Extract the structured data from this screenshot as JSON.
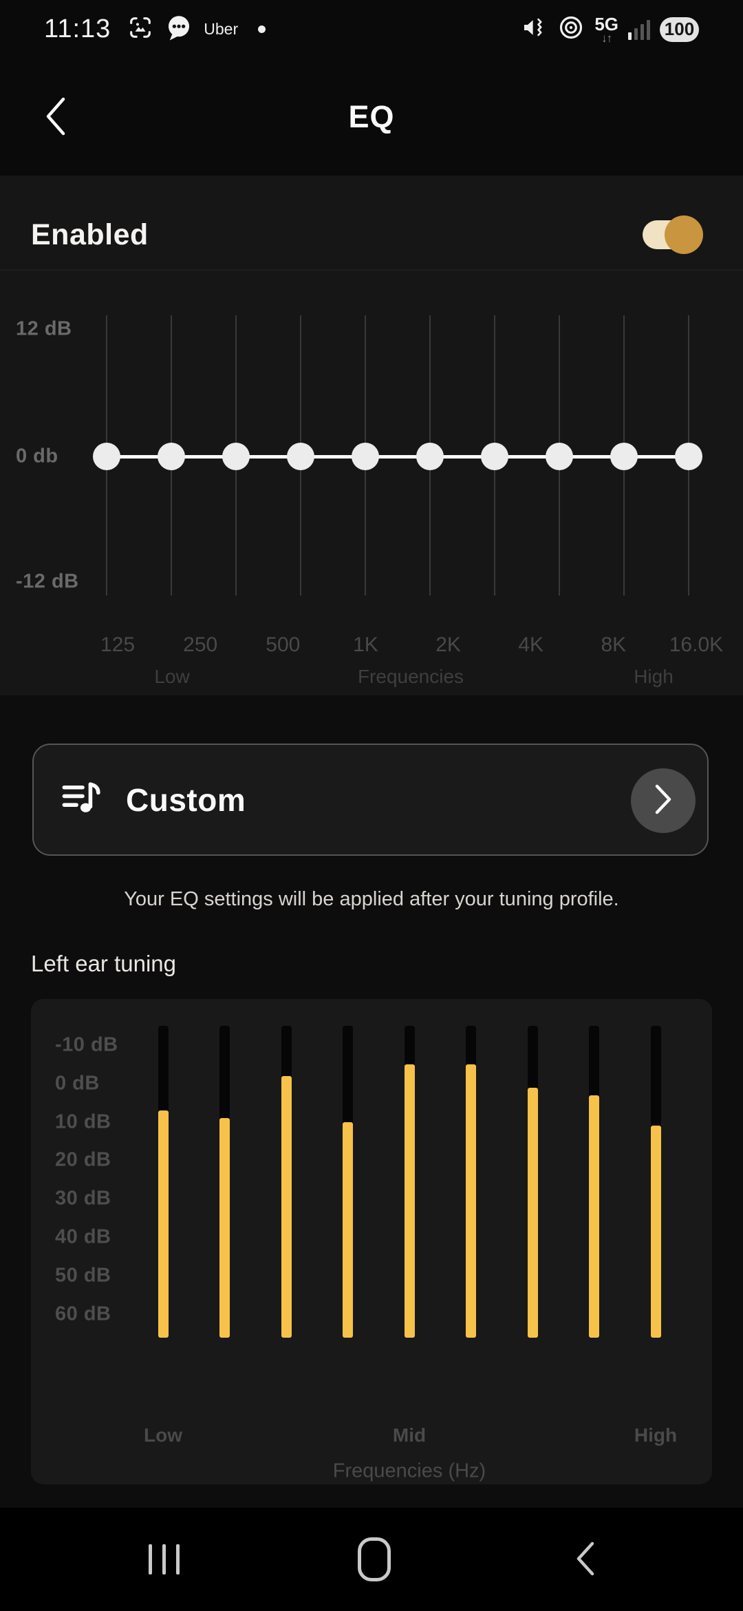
{
  "status_bar": {
    "time": "11:13",
    "app_label": "Uber",
    "network": "5G",
    "network_arrows": "↓↑",
    "battery_percent": "100",
    "icons": [
      "screenshot-icon",
      "messages-icon",
      "notification-dot-icon",
      "mute-vibrate-icon",
      "hotspot-icon",
      "signal-strength-icon",
      "battery-indicator"
    ]
  },
  "header": {
    "title": "EQ",
    "back_icon": "chevron-left-icon"
  },
  "eq_enabled": {
    "label": "Enabled",
    "on": true
  },
  "custom_card": {
    "label": "Custom",
    "icon": "playlist-music-icon",
    "chevron_icon": "chevron-right-icon"
  },
  "caption": "Your EQ settings will be applied after your tuning profile.",
  "left_ear_section": {
    "title": "Left ear tuning"
  },
  "accent_colors": {
    "toggle_knob": "#c9953e",
    "toggle_track": "#f0e2c2",
    "bar_yellow": "#f6c24a",
    "dot_white": "#ececec"
  },
  "chart_data": [
    {
      "type": "line",
      "title": "EQ curve",
      "x_tick_labels": [
        "125",
        "250",
        "500",
        "1K",
        "2K",
        "4K",
        "8K",
        "16.0K"
      ],
      "x_group_labels": [
        "Low",
        "Frequencies",
        "High"
      ],
      "ytick_labels": [
        "12 dB",
        "0 db",
        "-12 dB"
      ],
      "ylim": [
        -12,
        12
      ],
      "band_gains_db": [
        0,
        0,
        0,
        0,
        0,
        0,
        0,
        0,
        0,
        0
      ],
      "grid": "vertical",
      "marker": "circle"
    },
    {
      "type": "bar",
      "title": "Left ear tuning",
      "ytick_labels": [
        "-10 dB",
        "0 dB",
        "10 dB",
        "20 dB",
        "30 dB",
        "40 dB",
        "50 dB",
        "60 dB"
      ],
      "values_db": [
        7,
        9,
        -2,
        10,
        -5,
        -5,
        1,
        3,
        11
      ],
      "bar_group_labels": [
        "Low",
        "Mid",
        "High"
      ],
      "xlabel": "Frequencies (Hz)",
      "ylim": [
        -14,
        66
      ],
      "axis_note": "positive dB plotted downward; yellow fill rises from bottom to value"
    }
  ],
  "nav_bar": {
    "buttons": [
      "recents",
      "home",
      "back"
    ]
  }
}
